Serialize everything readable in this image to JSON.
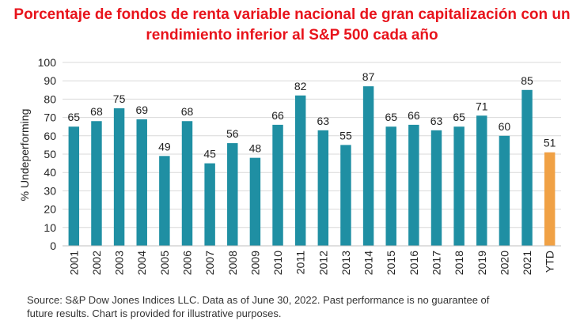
{
  "title_lines": [
    "Porcentaje de fondos de renta variable nacional de gran capitalización con un",
    "rendimiento inferior al S&P 500 cada año"
  ],
  "colors": {
    "title": "#e8141c",
    "bar": "#1f8fa3",
    "highlight": "#f0a145",
    "grid": "#d9d9d9",
    "axis_text": "#222222"
  },
  "chart_data": {
    "type": "bar",
    "title": "Porcentaje de fondos de renta variable nacional de gran capitalización con un rendimiento inferior al S&P 500 cada año",
    "ylabel": "% Undeperforming",
    "xlabel": "",
    "ylim": [
      0,
      100
    ],
    "yticks": [
      0,
      10,
      20,
      30,
      40,
      50,
      60,
      70,
      80,
      90,
      100
    ],
    "categories": [
      "2001",
      "2002",
      "2003",
      "2004",
      "2005",
      "2006",
      "2007",
      "2008",
      "2009",
      "2010",
      "2011",
      "2012",
      "2013",
      "2014",
      "2015",
      "2016",
      "2017",
      "2018",
      "2019",
      "2020",
      "2021",
      "YTD"
    ],
    "values": [
      65,
      68,
      75,
      69,
      49,
      68,
      45,
      56,
      48,
      66,
      82,
      63,
      55,
      87,
      65,
      66,
      63,
      65,
      71,
      60,
      85,
      51
    ],
    "highlight_index": 21,
    "grid": true,
    "data_labels": true
  },
  "source_lines": [
    "Source: S&P Dow Jones Indices LLC.  Data as of June 30, 2022.  Past performance is no guarantee of",
    "future results.  Chart is provided for illustrative purposes."
  ]
}
